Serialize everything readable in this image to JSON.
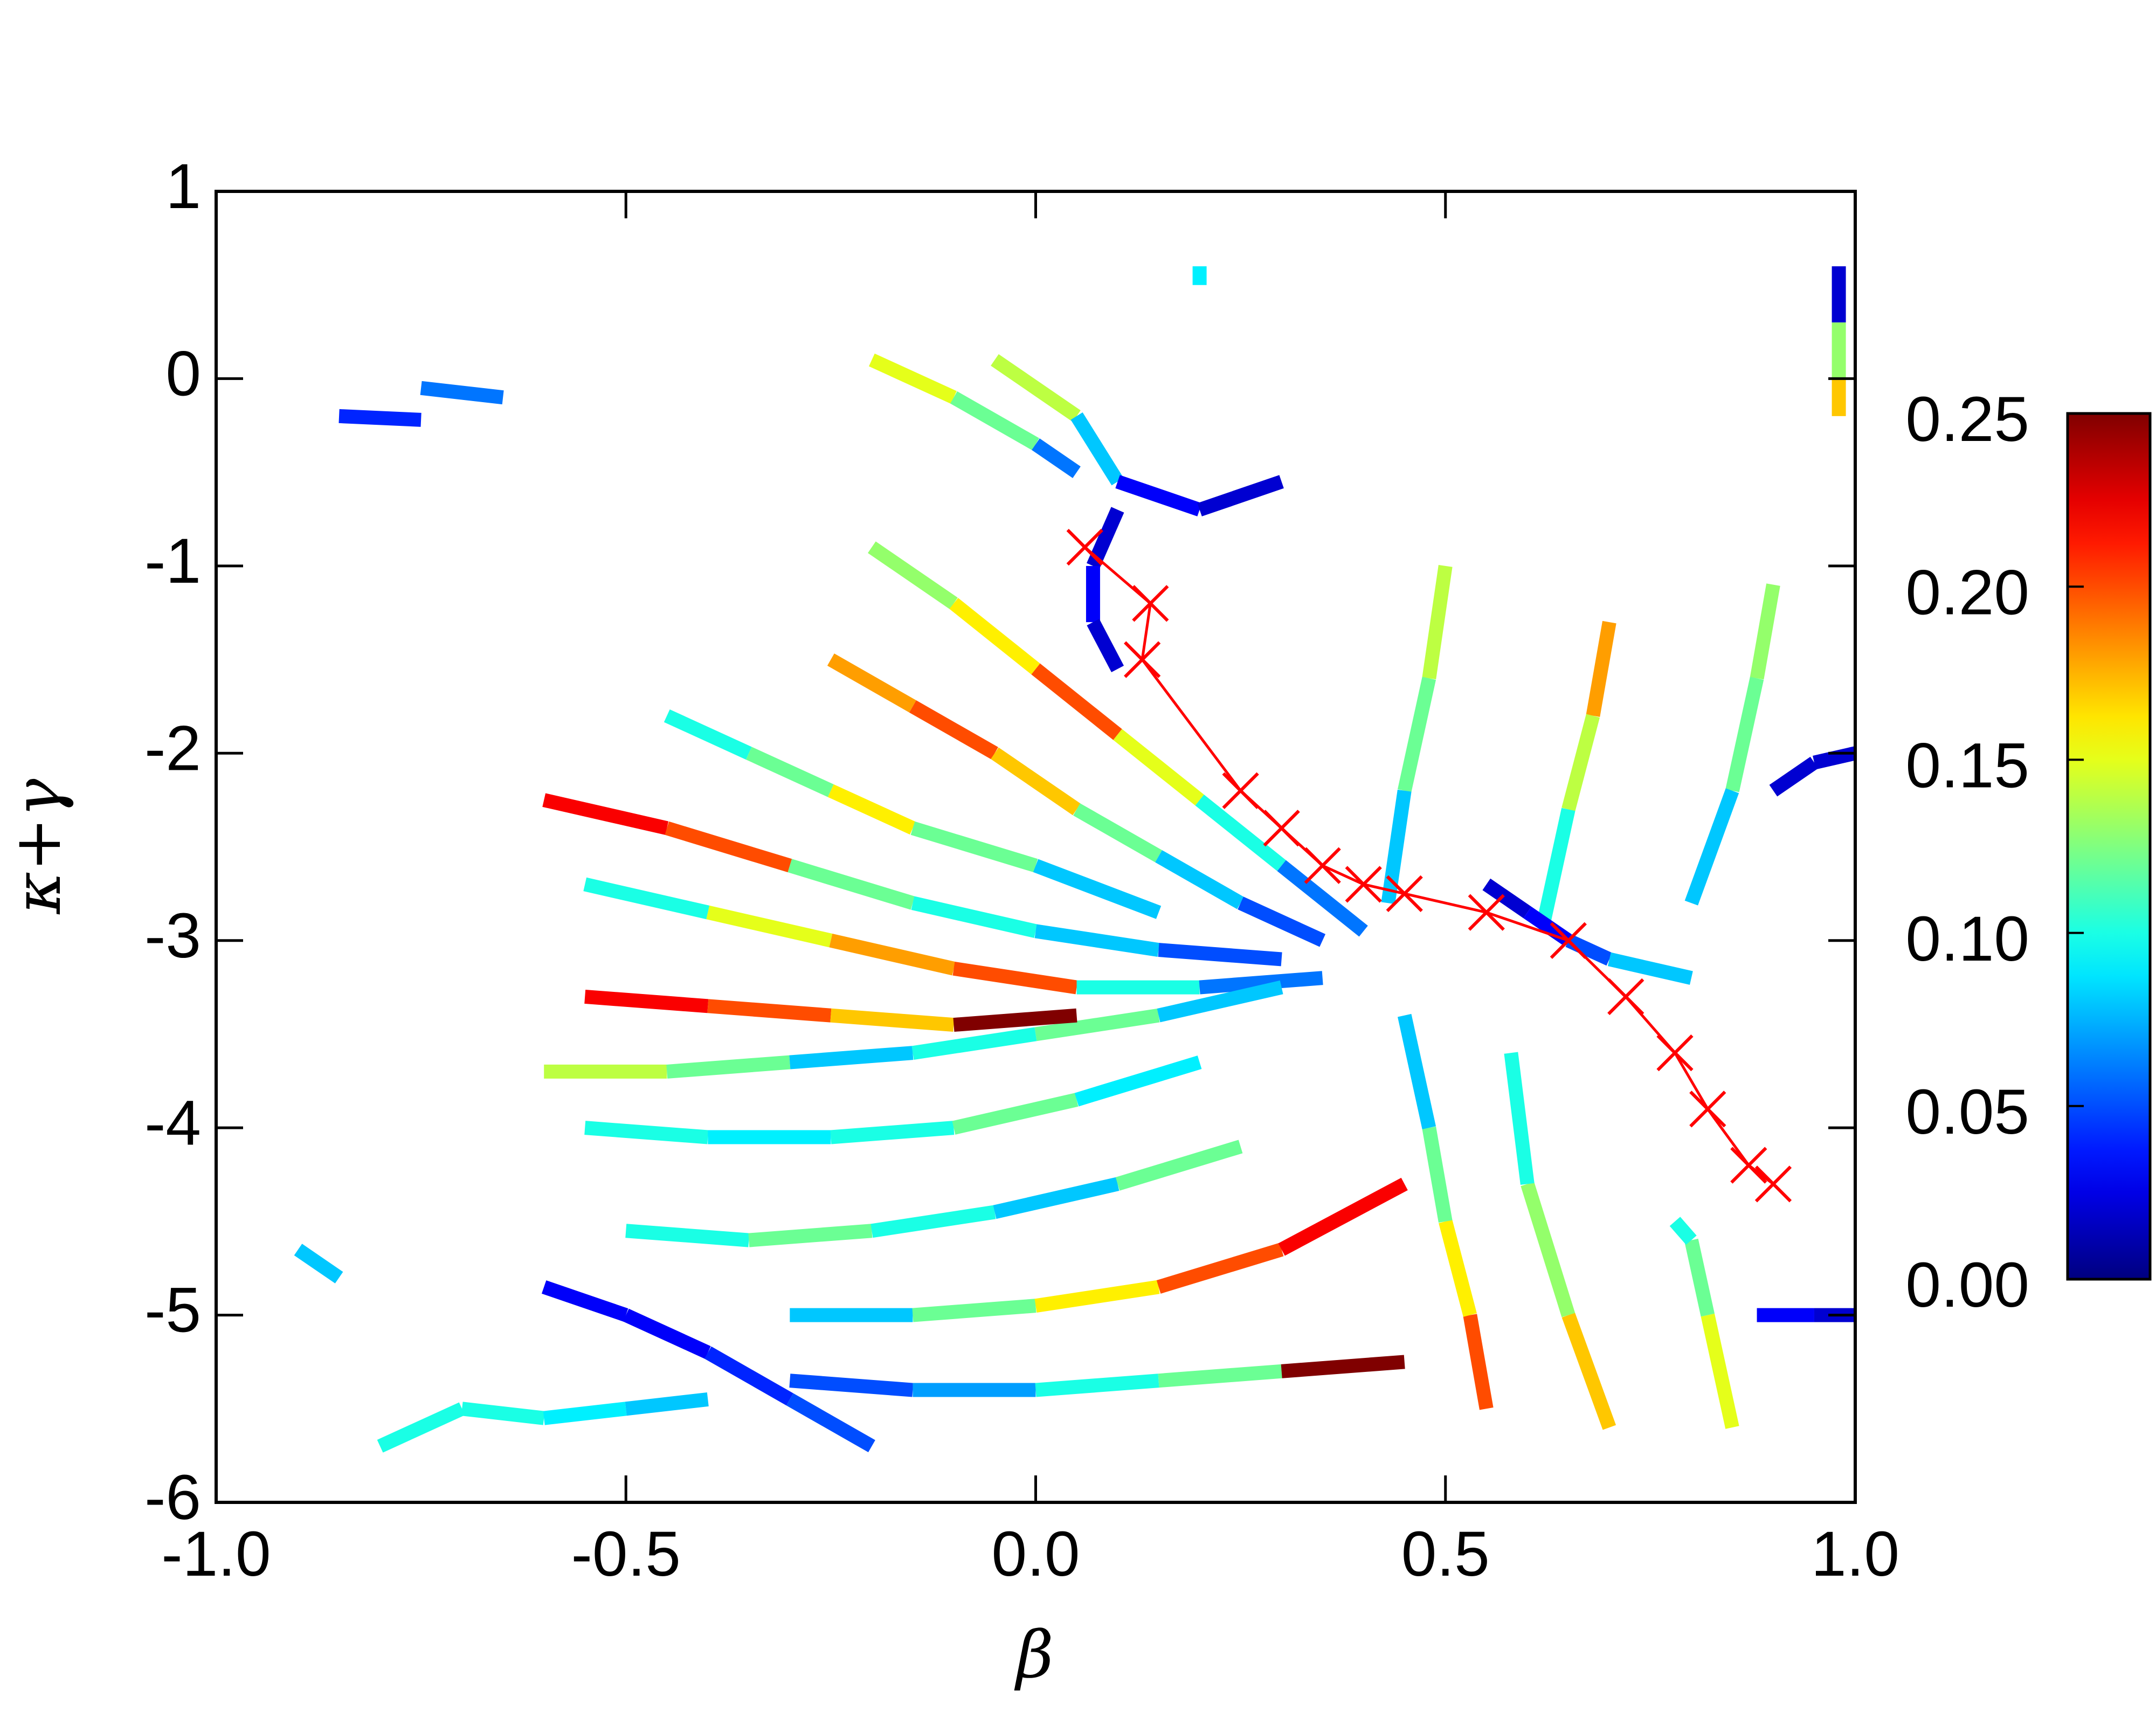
{
  "chart_data": {
    "type": "trajectory",
    "xlabel": "β",
    "ylabel": "κ+γ",
    "xlim": [
      -1,
      1
    ],
    "ylim": [
      -6,
      1
    ],
    "xticks": [
      {
        "value": -1,
        "label": "-1.0"
      },
      -0.5,
      {
        "value": 0,
        "label": "0.0"
      },
      0.5,
      {
        "value": 1,
        "label": "1.0"
      }
    ],
    "yticks": [
      -6,
      -5,
      -4,
      -3,
      -2,
      -1,
      0,
      1
    ],
    "colorbar": {
      "colormap": "jet",
      "clim": [
        0,
        0.25
      ],
      "ticks": [
        {
          "value": 0,
          "label": "0.00"
        },
        0.05,
        {
          "value": 0.1,
          "label": "0.10"
        },
        0.15,
        {
          "value": 0.2,
          "label": "0.20"
        },
        0.25
      ]
    },
    "trajectories": [
      {
        "x": [
          -0.6,
          -0.45,
          -0.3,
          -0.15,
          0.0,
          0.15,
          0.3
        ],
        "y": [
          -2.25,
          -2.4,
          -2.6,
          -2.8,
          -2.95,
          -3.05,
          -3.1
        ],
        "values": [
          0.22,
          0.2,
          0.12,
          0.1,
          0.08,
          0.05,
          0.02
        ]
      },
      {
        "x": [
          -0.55,
          -0.4,
          -0.25,
          -0.1,
          0.05,
          0.2,
          0.35
        ],
        "y": [
          -2.7,
          -2.85,
          -3.0,
          -3.15,
          -3.25,
          -3.25,
          -3.2
        ],
        "values": [
          0.1,
          0.15,
          0.18,
          0.2,
          0.1,
          0.06,
          0.02
        ]
      },
      {
        "x": [
          -0.6,
          -0.45,
          -0.3,
          -0.15,
          0.0,
          0.15,
          0.3
        ],
        "y": [
          -3.7,
          -3.7,
          -3.65,
          -3.6,
          -3.5,
          -3.4,
          -3.25
        ],
        "values": [
          0.14,
          0.12,
          0.08,
          0.1,
          0.12,
          0.08,
          0.03
        ]
      },
      {
        "x": [
          -0.55,
          -0.4,
          -0.25,
          -0.1,
          0.05,
          0.2
        ],
        "y": [
          -4.0,
          -4.05,
          -4.05,
          -4.0,
          -3.85,
          -3.65
        ],
        "values": [
          0.1,
          0.09,
          0.1,
          0.12,
          0.09,
          0.05
        ]
      },
      {
        "x": [
          -0.5,
          -0.35,
          -0.2,
          -0.05,
          0.1,
          0.25
        ],
        "y": [
          -4.55,
          -4.6,
          -4.55,
          -4.45,
          -4.3,
          -4.1
        ],
        "values": [
          0.1,
          0.12,
          0.1,
          0.08,
          0.12,
          0.1
        ]
      },
      {
        "x": [
          -0.3,
          -0.15,
          0.0,
          0.15,
          0.3,
          0.45
        ],
        "y": [
          -5.0,
          -5.0,
          -4.95,
          -4.85,
          -4.65,
          -4.3
        ],
        "values": [
          0.08,
          0.12,
          0.16,
          0.2,
          0.22,
          0.18
        ]
      },
      {
        "x": [
          -0.3,
          -0.15,
          0.0,
          0.15,
          0.3,
          0.45
        ],
        "y": [
          -5.35,
          -5.4,
          -5.4,
          -5.35,
          -5.3,
          -5.25
        ],
        "values": [
          0.05,
          0.07,
          0.1,
          0.12,
          0.25,
          0.2
        ]
      },
      {
        "x": [
          -0.2,
          -0.1,
          0.0,
          0.1,
          0.2,
          0.3,
          0.4
        ],
        "y": [
          -0.9,
          -1.2,
          -1.55,
          -1.9,
          -2.25,
          -2.6,
          -2.95
        ],
        "values": [
          0.13,
          0.16,
          0.2,
          0.15,
          0.1,
          0.06,
          0.02
        ]
      },
      {
        "x": [
          -0.25,
          -0.15,
          -0.05,
          0.05,
          0.15,
          0.25,
          0.35
        ],
        "y": [
          -1.5,
          -1.75,
          -2.0,
          -2.3,
          -2.55,
          -2.8,
          -3.0
        ],
        "values": [
          0.18,
          0.2,
          0.17,
          0.12,
          0.08,
          0.05,
          0.02
        ]
      },
      {
        "x": [
          -0.45,
          -0.35,
          -0.25,
          -0.15,
          0.0,
          0.15
        ],
        "y": [
          -1.8,
          -2.0,
          -2.2,
          -2.4,
          -2.6,
          -2.85
        ],
        "values": [
          0.1,
          0.12,
          0.16,
          0.12,
          0.08,
          0.04
        ]
      },
      {
        "x": [
          -0.55,
          -0.4,
          -0.25,
          -0.1,
          0.05
        ],
        "y": [
          -3.3,
          -3.35,
          -3.4,
          -3.45,
          -3.4
        ],
        "values": [
          0.22,
          0.2,
          0.17,
          0.25,
          0.1
        ]
      },
      {
        "x": [
          -0.2,
          -0.1,
          0.0,
          0.05
        ],
        "y": [
          0.1,
          -0.1,
          -0.35,
          -0.5
        ],
        "values": [
          0.15,
          0.12,
          0.06,
          0.03
        ]
      },
      {
        "x": [
          -0.05,
          0.05,
          0.1,
          0.2,
          0.3
        ],
        "y": [
          0.1,
          -0.2,
          -0.55,
          -0.7,
          -0.55
        ],
        "values": [
          0.14,
          0.08,
          0.03,
          0.02,
          0.1
        ]
      },
      {
        "x": [
          0.1,
          0.07,
          0.07,
          0.1
        ],
        "y": [
          -0.7,
          -1.0,
          -1.3,
          -1.55
        ],
        "values": [
          0.02,
          0.03,
          0.02,
          0.04
        ]
      },
      {
        "x": [
          0.55,
          0.53,
          0.5,
          0.48,
          0.45
        ],
        "y": [
          -5.5,
          -5.0,
          -4.5,
          -4.0,
          -3.4
        ],
        "values": [
          0.2,
          0.16,
          0.12,
          0.08,
          0.03
        ]
      },
      {
        "x": [
          0.7,
          0.65,
          0.6,
          0.58
        ],
        "y": [
          -5.6,
          -5.0,
          -4.3,
          -3.6
        ],
        "values": [
          0.17,
          0.13,
          0.1,
          0.05
        ]
      },
      {
        "x": [
          0.85,
          0.82,
          0.8,
          0.78
        ],
        "y": [
          -5.6,
          -5.0,
          -4.6,
          -4.5
        ],
        "values": [
          0.15,
          0.12,
          0.1,
          0.03
        ]
      },
      {
        "x": [
          0.5,
          0.48,
          0.45,
          0.43
        ],
        "y": [
          -1.0,
          -1.6,
          -2.2,
          -2.8
        ],
        "values": [
          0.14,
          0.12,
          0.08,
          0.03
        ]
      },
      {
        "x": [
          0.7,
          0.68,
          0.65,
          0.62
        ],
        "y": [
          -1.3,
          -1.8,
          -2.3,
          -2.9
        ],
        "values": [
          0.18,
          0.14,
          0.1,
          0.04
        ]
      },
      {
        "x": [
          0.9,
          0.88,
          0.85,
          0.8
        ],
        "y": [
          -1.1,
          -1.6,
          -2.2,
          -2.8
        ],
        "values": [
          0.13,
          0.12,
          0.08,
          0.04
        ]
      },
      {
        "x": [
          0.55,
          0.6,
          0.65,
          0.7,
          0.8
        ],
        "y": [
          -2.7,
          -2.85,
          -3.0,
          -3.1,
          -3.2
        ],
        "values": [
          0.02,
          0.03,
          0.05,
          0.08,
          0.1
        ]
      },
      {
        "x": [
          0.9,
          0.95,
          1.0
        ],
        "y": [
          -2.2,
          -2.05,
          -2.0
        ],
        "values": [
          0.02,
          0.02,
          0.02
        ]
      },
      {
        "x": [
          0.88,
          0.95,
          1.0
        ],
        "y": [
          -5.0,
          -5.0,
          -5.0
        ],
        "values": [
          0.03,
          0.02,
          0.01
        ]
      },
      {
        "x": [
          -0.6,
          -0.5,
          -0.4,
          -0.3,
          -0.2
        ],
        "y": [
          -4.85,
          -5.0,
          -5.2,
          -5.45,
          -5.7
        ],
        "values": [
          0.03,
          0.03,
          0.04,
          0.05,
          0.05
        ]
      },
      {
        "x": [
          -0.8,
          -0.7,
          -0.6,
          -0.5,
          -0.4
        ],
        "y": [
          -5.7,
          -5.5,
          -5.55,
          -5.5,
          -5.45
        ],
        "values": [
          0.1,
          0.1,
          0.09,
          0.08,
          0.05
        ]
      },
      {
        "x": [
          -0.75,
          -0.65
        ],
        "y": [
          -0.05,
          -0.1
        ],
        "values": [
          0.06,
          0.01
        ]
      },
      {
        "x": [
          -0.85,
          -0.75
        ],
        "y": [
          -0.2,
          -0.22
        ],
        "values": [
          0.04,
          0.03
        ]
      },
      {
        "x": [
          -0.9,
          -0.85
        ],
        "y": [
          -4.65,
          -4.8
        ],
        "values": [
          0.08,
          0.0
        ]
      },
      {
        "x": [
          0.2,
          0.2
        ],
        "y": [
          0.6,
          0.5
        ],
        "values": [
          0.09,
          0.0
        ]
      },
      {
        "x": [
          0.98,
          0.98,
          0.98,
          0.98
        ],
        "y": [
          0.6,
          0.3,
          0.0,
          -0.2
        ],
        "values": [
          0.02,
          0.13,
          0.17,
          0.03
        ]
      }
    ],
    "markers": {
      "color": "#ff0000",
      "x": [
        0.06,
        0.14,
        0.13,
        0.25,
        0.3,
        0.35,
        0.4,
        0.45,
        0.55,
        0.65,
        0.72,
        0.78,
        0.82,
        0.87,
        0.9
      ],
      "y": [
        -0.9,
        -1.2,
        -1.5,
        -2.2,
        -2.4,
        -2.6,
        -2.7,
        -2.75,
        -2.85,
        -3.0,
        -3.3,
        -3.6,
        -3.9,
        -4.2,
        -4.3
      ]
    }
  }
}
